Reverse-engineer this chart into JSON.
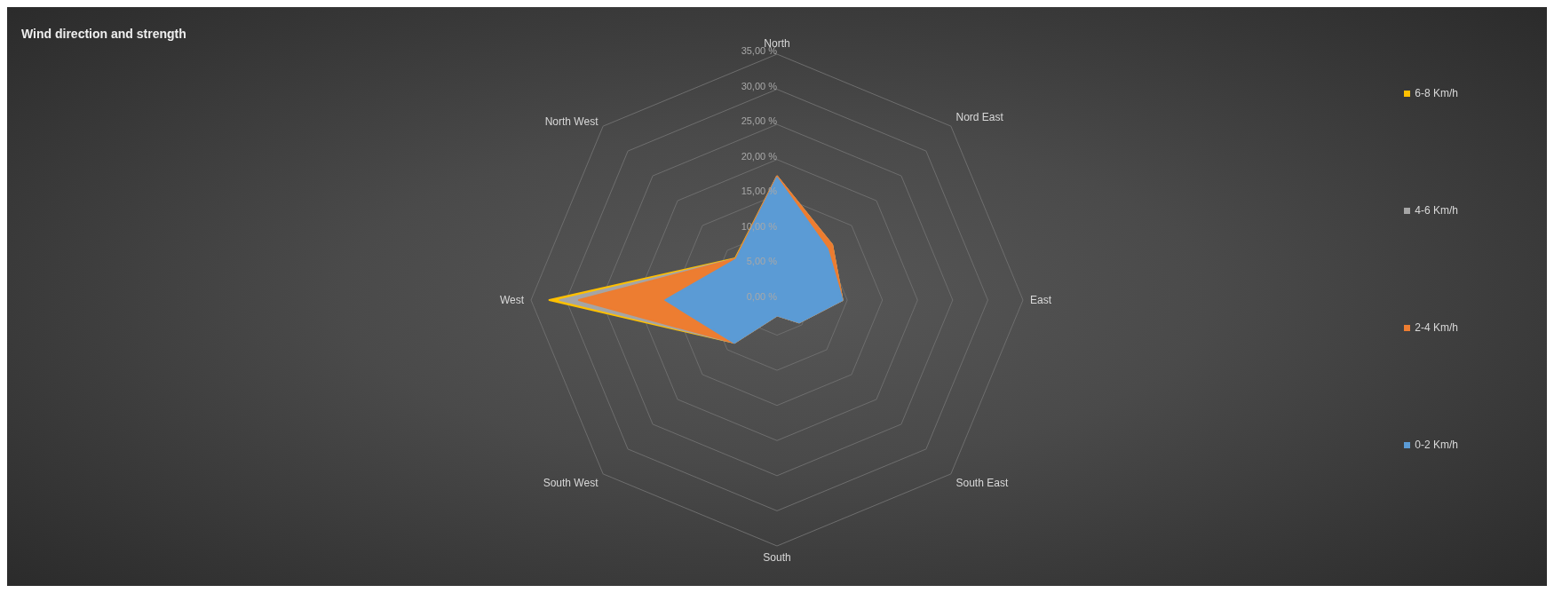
{
  "chart_data": {
    "type": "radar",
    "title": "Wind direction and strength",
    "categories": [
      "North",
      "Nord East",
      "East",
      "South East",
      "South",
      "South West",
      "West",
      "North West"
    ],
    "series": [
      {
        "name": "0-2 Km/h",
        "color": "#5b9bd5",
        "values": [
          17.4,
          10.2,
          9.3,
          4.5,
          2.2,
          8.6,
          15.9,
          8.2
        ]
      },
      {
        "name": "2-4 Km/h",
        "color": "#ed7d31",
        "values": [
          17.6,
          11.1,
          9.3,
          4.5,
          2.2,
          8.6,
          28.2,
          8.3
        ]
      },
      {
        "name": "4-6 Km/h",
        "color": "#a5a5a5",
        "values": [
          17.6,
          11.1,
          9.3,
          4.5,
          2.2,
          8.6,
          30.9,
          8.3
        ]
      },
      {
        "name": "6-8 Km/h",
        "color": "#ffc000",
        "values": [
          17.6,
          11.1,
          9.3,
          4.5,
          2.2,
          8.6,
          32.4,
          8.4
        ]
      }
    ],
    "ylim": [
      0,
      35
    ],
    "yticks": [
      {
        "value": 0,
        "label": "0,00 %"
      },
      {
        "value": 5,
        "label": "5,00 %"
      },
      {
        "value": 10,
        "label": "10,00 %"
      },
      {
        "value": 15,
        "label": "15,00 %"
      },
      {
        "value": 20,
        "label": "20,00 %"
      },
      {
        "value": 25,
        "label": "25,00 %"
      },
      {
        "value": 30,
        "label": "30,00 %"
      },
      {
        "value": 35,
        "label": "35,00 %"
      }
    ],
    "grid": true,
    "legend": "right"
  }
}
